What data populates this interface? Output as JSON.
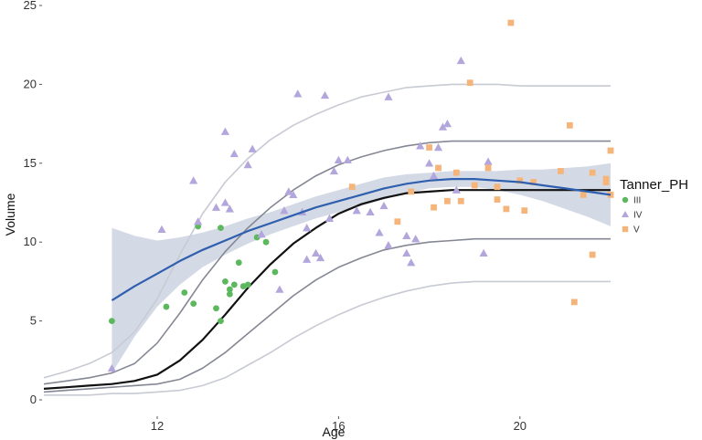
{
  "chart_data": {
    "type": "scatter",
    "xlabel": "Age",
    "ylabel": "Volume",
    "xlim": [
      9.5,
      22
    ],
    "ylim": [
      0,
      25
    ],
    "x_ticks": [
      12,
      16,
      20
    ],
    "y_ticks": [
      0,
      5,
      10,
      15,
      20,
      25
    ],
    "grid": false,
    "legend": {
      "title": "Tanner_PH",
      "position": "right",
      "entries": [
        {
          "label": "III",
          "color": "#5cb85c",
          "shape": "circle"
        },
        {
          "label": "IV",
          "color": "#b3a6dc",
          "shape": "triangle"
        },
        {
          "label": "V",
          "color": "#f5b57a",
          "shape": "square"
        }
      ]
    },
    "series": [
      {
        "name": "III",
        "color": "#5cb85c",
        "shape": "circle",
        "points": [
          [
            11.0,
            5.0
          ],
          [
            12.2,
            5.9
          ],
          [
            12.6,
            6.8
          ],
          [
            12.8,
            6.1
          ],
          [
            12.9,
            11.0
          ],
          [
            13.4,
            10.9
          ],
          [
            13.3,
            5.8
          ],
          [
            13.4,
            5.0
          ],
          [
            13.5,
            7.5
          ],
          [
            13.6,
            7.0
          ],
          [
            13.6,
            6.7
          ],
          [
            13.7,
            7.3
          ],
          [
            13.8,
            8.7
          ],
          [
            13.9,
            7.2
          ],
          [
            14.0,
            7.3
          ],
          [
            14.2,
            10.3
          ],
          [
            14.4,
            10.0
          ],
          [
            14.6,
            8.1
          ]
        ]
      },
      {
        "name": "IV",
        "color": "#b3a6dc",
        "shape": "triangle",
        "points": [
          [
            11.0,
            2.0
          ],
          [
            12.1,
            10.8
          ],
          [
            12.8,
            13.9
          ],
          [
            12.9,
            11.3
          ],
          [
            13.3,
            12.2
          ],
          [
            13.5,
            12.5
          ],
          [
            13.5,
            17.0
          ],
          [
            13.6,
            12.1
          ],
          [
            13.7,
            15.6
          ],
          [
            14.1,
            15.9
          ],
          [
            14.0,
            14.9
          ],
          [
            14.3,
            10.5
          ],
          [
            14.7,
            7.0
          ],
          [
            14.8,
            12.0
          ],
          [
            14.9,
            13.2
          ],
          [
            15.0,
            13.0
          ],
          [
            15.1,
            19.4
          ],
          [
            15.2,
            11.9
          ],
          [
            15.3,
            10.9
          ],
          [
            15.3,
            8.9
          ],
          [
            15.5,
            9.3
          ],
          [
            15.6,
            9.0
          ],
          [
            15.7,
            19.3
          ],
          [
            15.8,
            11.5
          ],
          [
            15.9,
            14.5
          ],
          [
            16.0,
            15.2
          ],
          [
            16.2,
            15.2
          ],
          [
            16.4,
            12.0
          ],
          [
            16.7,
            11.9
          ],
          [
            16.9,
            10.6
          ],
          [
            17.0,
            12.3
          ],
          [
            17.1,
            9.8
          ],
          [
            17.1,
            19.2
          ],
          [
            17.5,
            10.4
          ],
          [
            17.5,
            9.3
          ],
          [
            17.6,
            8.7
          ],
          [
            17.7,
            10.2
          ],
          [
            17.8,
            16.1
          ],
          [
            18.0,
            15.0
          ],
          [
            18.1,
            14.2
          ],
          [
            18.2,
            16.0
          ],
          [
            18.3,
            17.3
          ],
          [
            18.4,
            17.5
          ],
          [
            18.6,
            13.3
          ],
          [
            18.7,
            21.5
          ],
          [
            19.2,
            9.3
          ],
          [
            19.3,
            15.1
          ]
        ]
      },
      {
        "name": "V",
        "color": "#f5b57a",
        "shape": "square",
        "points": [
          [
            16.3,
            13.5
          ],
          [
            17.3,
            11.3
          ],
          [
            17.6,
            13.2
          ],
          [
            18.0,
            16.0
          ],
          [
            18.1,
            12.2
          ],
          [
            18.2,
            14.7
          ],
          [
            18.4,
            12.6
          ],
          [
            18.6,
            14.4
          ],
          [
            18.7,
            12.6
          ],
          [
            18.9,
            20.1
          ],
          [
            19.0,
            13.6
          ],
          [
            19.3,
            14.7
          ],
          [
            19.5,
            13.5
          ],
          [
            19.5,
            12.7
          ],
          [
            19.7,
            12.1
          ],
          [
            19.8,
            23.9
          ],
          [
            20.1,
            12.0
          ],
          [
            20.0,
            13.9
          ],
          [
            20.3,
            13.8
          ],
          [
            20.9,
            14.5
          ],
          [
            21.1,
            17.4
          ],
          [
            21.2,
            6.2
          ],
          [
            21.4,
            13.0
          ],
          [
            21.6,
            9.2
          ],
          [
            21.6,
            14.4
          ],
          [
            21.9,
            13.8
          ],
          [
            21.9,
            14.0
          ],
          [
            22.0,
            15.8
          ],
          [
            22.0,
            13.0
          ]
        ]
      }
    ],
    "smooth_fit": {
      "color": "#2f5fae",
      "band_color": "#c6cedc",
      "x": [
        11.0,
        11.5,
        12.0,
        12.5,
        13.0,
        13.5,
        14.0,
        14.5,
        15.0,
        15.5,
        16.0,
        16.5,
        17.0,
        17.5,
        18.0,
        18.5,
        19.0,
        19.5,
        20.0,
        20.5,
        21.0,
        21.5,
        22.0
      ],
      "y": [
        6.3,
        7.2,
        8.0,
        8.8,
        9.5,
        10.1,
        10.7,
        11.2,
        11.7,
        12.2,
        12.6,
        13.0,
        13.4,
        13.7,
        13.9,
        14.0,
        14.0,
        13.9,
        13.8,
        13.6,
        13.4,
        13.2,
        13.0
      ],
      "lower": [
        1.7,
        4.0,
        5.9,
        7.3,
        8.4,
        9.2,
        9.9,
        10.5,
        11.0,
        11.5,
        11.9,
        12.3,
        12.7,
        13.1,
        13.4,
        13.5,
        13.5,
        13.3,
        13.0,
        12.6,
        12.1,
        11.6,
        11.0
      ],
      "upper": [
        10.9,
        10.4,
        10.1,
        10.3,
        10.6,
        11.0,
        11.5,
        11.9,
        12.4,
        12.9,
        13.3,
        13.7,
        14.1,
        14.3,
        14.4,
        14.5,
        14.5,
        14.5,
        14.6,
        14.6,
        14.7,
        14.8,
        15.0
      ]
    },
    "reference_curves": {
      "x": [
        9.5,
        10.0,
        10.5,
        11.0,
        11.5,
        12.0,
        12.5,
        13.0,
        13.5,
        14.0,
        14.5,
        15.0,
        15.5,
        16.0,
        16.5,
        17.0,
        17.5,
        18.0,
        18.5,
        19.0,
        19.5,
        20.0,
        21.0,
        22.0
      ],
      "lines": [
        {
          "color": "#c8cad4",
          "values": [
            1.4,
            1.8,
            2.3,
            3.0,
            4.3,
            6.4,
            9.2,
            11.8,
            13.8,
            15.3,
            16.5,
            17.4,
            18.1,
            18.7,
            19.2,
            19.5,
            19.8,
            19.9,
            20.0,
            20.0,
            20.0,
            19.9,
            19.9,
            19.9
          ]
        },
        {
          "color": "#858894",
          "values": [
            1.0,
            1.2,
            1.4,
            1.7,
            2.3,
            3.6,
            5.5,
            7.6,
            9.4,
            10.9,
            12.2,
            13.3,
            14.2,
            14.9,
            15.4,
            15.8,
            16.1,
            16.3,
            16.4,
            16.4,
            16.4,
            16.4,
            16.4,
            16.4
          ]
        },
        {
          "color": "#111111",
          "values": [
            0.7,
            0.8,
            0.9,
            1.0,
            1.2,
            1.6,
            2.5,
            3.8,
            5.4,
            7.1,
            8.6,
            9.9,
            10.9,
            11.8,
            12.4,
            12.8,
            13.1,
            13.2,
            13.3,
            13.3,
            13.3,
            13.3,
            13.3,
            13.3
          ]
        },
        {
          "color": "#858894",
          "values": [
            0.5,
            0.6,
            0.7,
            0.8,
            0.9,
            1.0,
            1.3,
            2.0,
            3.0,
            4.2,
            5.4,
            6.6,
            7.6,
            8.4,
            9.0,
            9.5,
            9.8,
            10.0,
            10.1,
            10.2,
            10.2,
            10.2,
            10.2,
            10.2
          ]
        },
        {
          "color": "#c8cad4",
          "values": [
            0.3,
            0.3,
            0.3,
            0.4,
            0.4,
            0.5,
            0.6,
            0.9,
            1.4,
            2.2,
            3.0,
            3.9,
            4.7,
            5.4,
            6.0,
            6.5,
            6.9,
            7.2,
            7.4,
            7.5,
            7.5,
            7.5,
            7.5,
            7.5
          ]
        }
      ]
    }
  }
}
